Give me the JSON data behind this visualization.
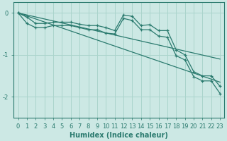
{
  "xlabel": "Humidex (Indice chaleur)",
  "ylabel": "",
  "background_color": "#cce8e4",
  "grid_color": "#aad4cc",
  "line_color": "#2a7a6e",
  "xlim": [
    -0.5,
    23.5
  ],
  "ylim": [
    -2.5,
    0.25
  ],
  "yticks": [
    0,
    -1,
    -2
  ],
  "xticks": [
    0,
    1,
    2,
    3,
    4,
    5,
    6,
    7,
    8,
    9,
    10,
    11,
    12,
    13,
    14,
    15,
    16,
    17,
    18,
    19,
    20,
    21,
    22,
    23
  ],
  "series1_x": [
    0,
    1,
    2,
    3,
    4,
    5,
    6,
    7,
    8,
    9,
    10,
    11,
    12,
    13,
    14,
    15,
    16,
    17,
    18,
    19,
    20,
    21,
    22,
    23
  ],
  "series1_y": [
    0.0,
    -0.1,
    -0.25,
    -0.25,
    -0.22,
    -0.22,
    -0.22,
    -0.27,
    -0.3,
    -0.3,
    -0.35,
    -0.42,
    -0.05,
    -0.08,
    -0.3,
    -0.28,
    -0.42,
    -0.42,
    -0.88,
    -1.0,
    -1.4,
    -1.5,
    -1.5,
    -1.75
  ],
  "series2_x": [
    0,
    1,
    2,
    3,
    4,
    5,
    6,
    7,
    8,
    9,
    10,
    11,
    12,
    13,
    14,
    15,
    16,
    17,
    18,
    19,
    20,
    21,
    22,
    23
  ],
  "series2_y": [
    0.0,
    -0.25,
    -0.35,
    -0.35,
    -0.3,
    -0.3,
    -0.3,
    -0.35,
    -0.4,
    -0.4,
    -0.48,
    -0.5,
    -0.13,
    -0.18,
    -0.4,
    -0.4,
    -0.55,
    -0.58,
    -1.02,
    -1.12,
    -1.52,
    -1.62,
    -1.62,
    -1.92
  ],
  "series3_x": [
    0,
    23
  ],
  "series3_y": [
    0.0,
    -1.1
  ],
  "series4_x": [
    0,
    23
  ],
  "series4_y": [
    0.0,
    -1.65
  ]
}
